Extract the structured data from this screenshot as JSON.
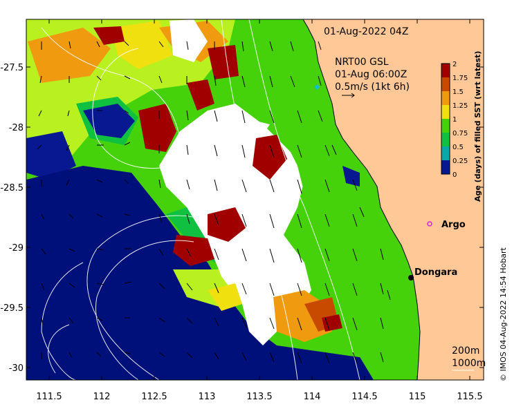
{
  "map": {
    "timestamp": "01-Aug-2022 04Z",
    "currents_product": "NRT00 GSL",
    "currents_time": "01-Aug 06:00Z",
    "vector_scale_label": "0.5m/s (1kt 6h)",
    "colorbar": {
      "title": "Age (days) of filled SST (wrt latest)",
      "ticks": [
        "2",
        "1.75",
        "1.5",
        "1.25",
        "1",
        "0.75",
        "0.5",
        "0.25",
        "0"
      ],
      "colors": [
        "#a00000",
        "#c84a00",
        "#f09a10",
        "#f0e010",
        "#b8f020",
        "#46d20a",
        "#10c040",
        "#0aa8a8",
        "#1070d0",
        "#081890",
        "#00007a"
      ]
    },
    "x_ticks": [
      "111.5",
      "112",
      "112.5",
      "113",
      "113.5",
      "114",
      "114.5",
      "115",
      "115.5"
    ],
    "y_ticks": [
      "-27.5",
      "-28",
      "-28.5",
      "-29",
      "-29.5",
      "-30"
    ],
    "places": [
      {
        "name": "Argo",
        "marker": "circle-magenta"
      },
      {
        "name": "Dongara",
        "marker": "dot-black"
      }
    ],
    "bathymetry_labels": [
      "200m",
      "1000m"
    ],
    "credit": "© IMOS 04-Aug-2022 14:54 Hobart",
    "colors": {
      "land": "#ffc896",
      "deep_ocean": "#00107a",
      "no_data": "#ffffff",
      "recent_green": "#46d20a",
      "old_red": "#a00000"
    }
  }
}
